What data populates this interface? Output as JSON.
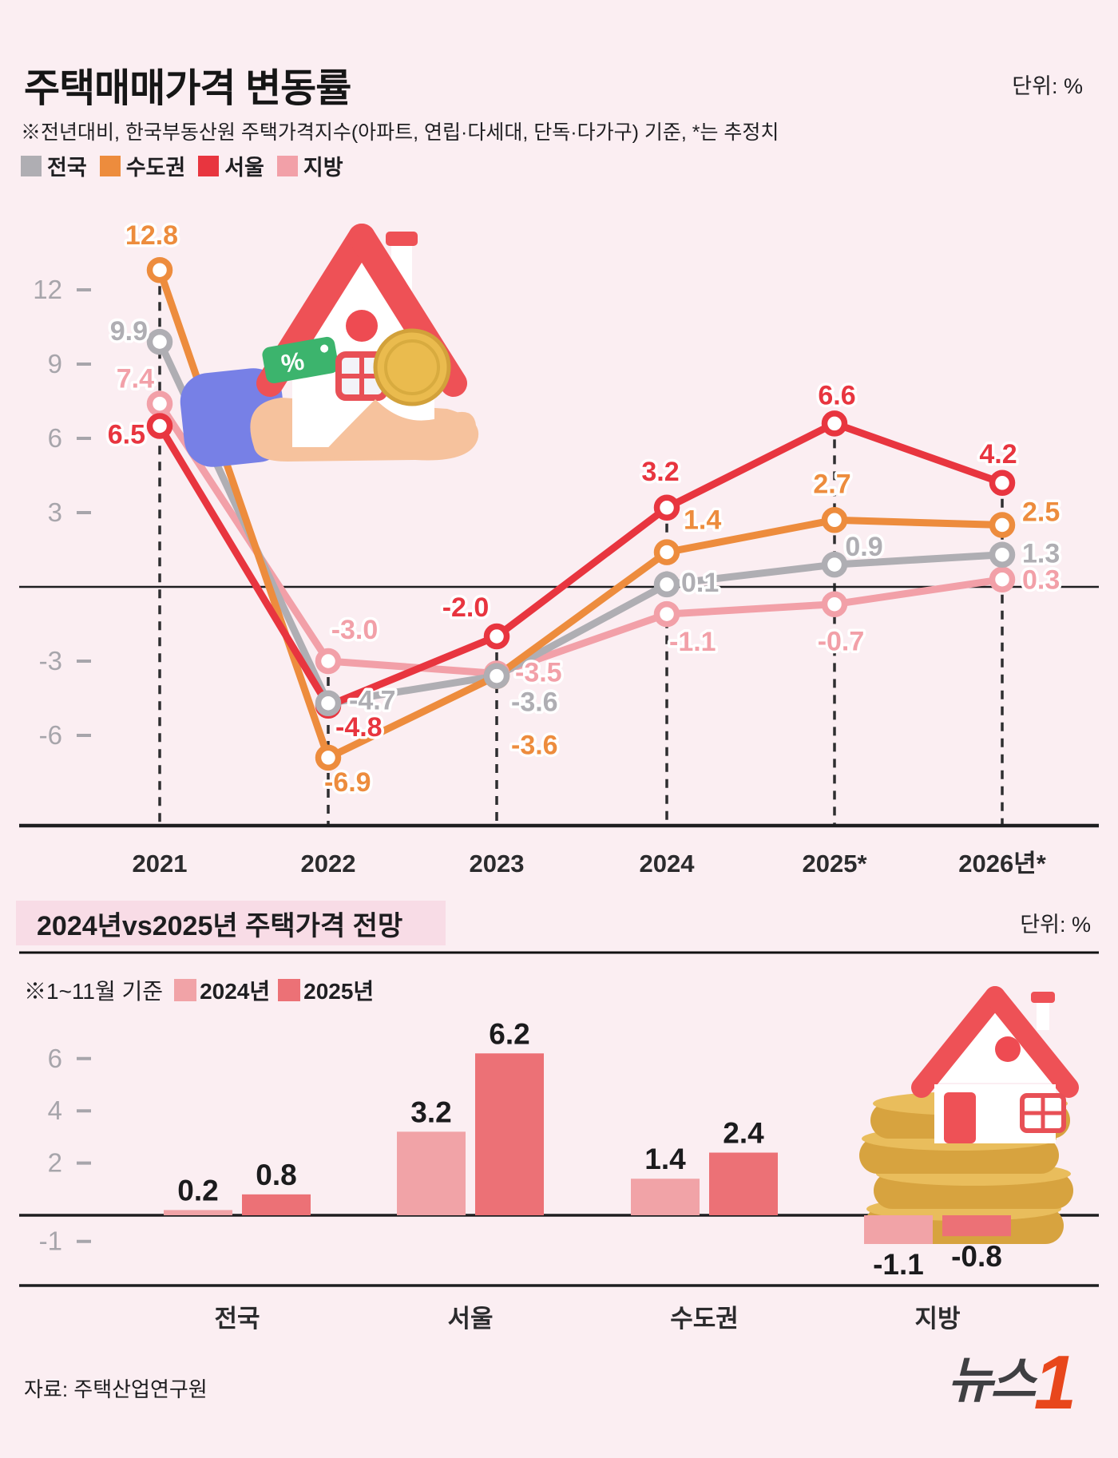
{
  "header": {
    "title": "주택매매가격 변동률",
    "unit": "단위: %",
    "note": "※전년대비, 한국부동산원 주택가격지수(아파트, 연립·다세대, 단독·다가구) 기준, *는 추정치"
  },
  "section2": {
    "title": "2024년vs2025년 주택가격 전망",
    "unit": "단위: %",
    "note": "※1~11월 기준"
  },
  "footer": {
    "source": "자료: 주택산업연구원",
    "logo_text": "뉴스",
    "logo_number": "1"
  },
  "colors": {
    "background": "#fbeef2",
    "header_box": "#f8dce6",
    "logo_orange": "#e8471c"
  },
  "chart_data": [
    {
      "type": "line",
      "title": "주택매매가격 변동률",
      "unit": "%",
      "x_labels": [
        "2021",
        "2022",
        "2023",
        "2024",
        "2025*",
        "2026년*"
      ],
      "yticks": [
        12,
        9,
        6,
        3,
        -3,
        -6
      ],
      "ylim": [
        -8.5,
        14.5
      ],
      "grid": "vertical-dashed",
      "legend_position": "top-left",
      "series": [
        {
          "name": "전국",
          "color": "#afaeb3",
          "values": [
            9.9,
            -4.7,
            -3.6,
            0.1,
            0.9,
            1.3
          ]
        },
        {
          "name": "수도권",
          "color": "#ed8c3d",
          "values": [
            12.8,
            -6.9,
            -3.6,
            1.4,
            2.7,
            2.5
          ]
        },
        {
          "name": "서울",
          "color": "#e8353f",
          "values": [
            6.5,
            -4.8,
            -2.0,
            3.2,
            6.6,
            4.2
          ]
        },
        {
          "name": "지방",
          "color": "#f2a0a8",
          "values": [
            7.4,
            -3.0,
            -3.5,
            -1.1,
            -0.7,
            0.3
          ]
        }
      ]
    },
    {
      "type": "bar",
      "title": "2024년vs2025년 주택가격 전망",
      "unit": "%",
      "note": "※1~11월 기준",
      "categories": [
        "전국",
        "서울",
        "수도권",
        "지방"
      ],
      "yticks": [
        6,
        4,
        2,
        -1
      ],
      "ylim": [
        -2,
        7
      ],
      "series": [
        {
          "name": "2024년",
          "color": "#f1a3a7",
          "values": [
            0.2,
            3.2,
            1.4,
            -1.1
          ]
        },
        {
          "name": "2025년",
          "color": "#ec7176",
          "values": [
            0.8,
            6.2,
            2.4,
            -0.8
          ]
        }
      ]
    }
  ]
}
